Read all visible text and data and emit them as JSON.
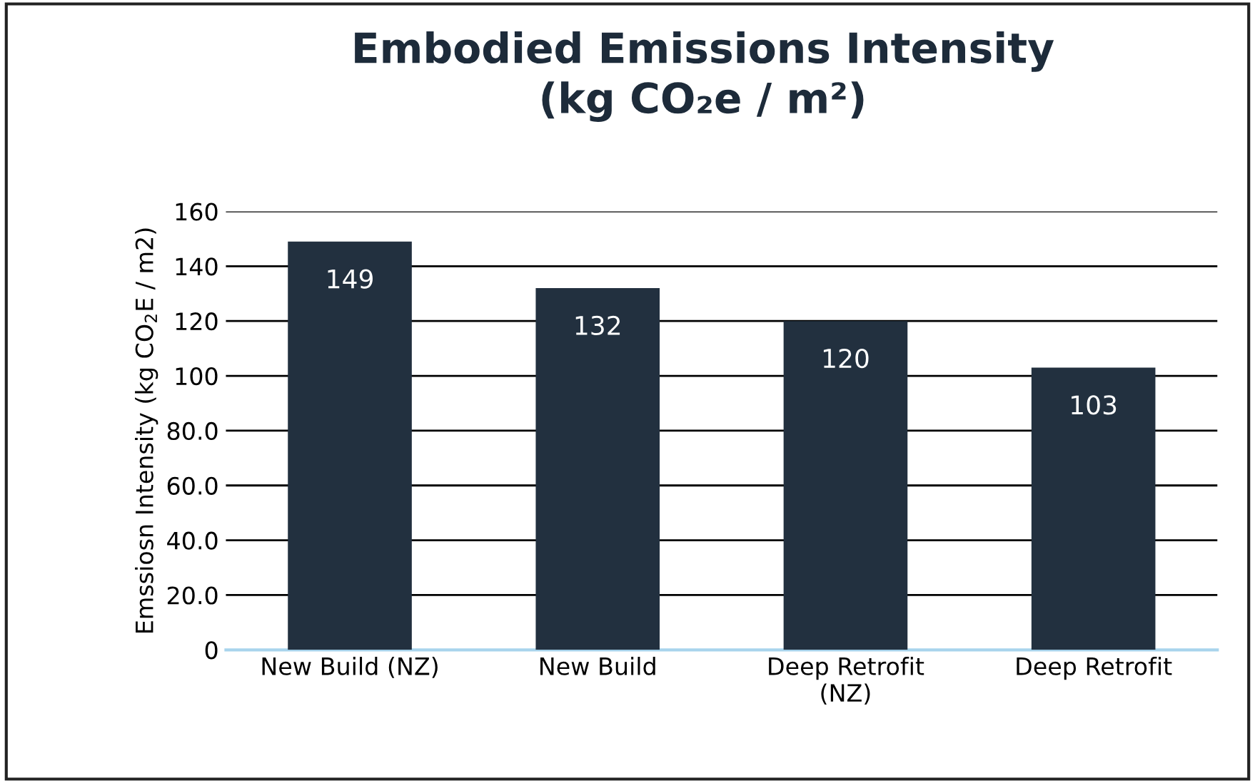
{
  "chart_data": {
    "type": "bar",
    "title": "Embodied Emissions Intensity\n(kg CO₂e / m²)",
    "ylabel": "Emssiosn Intensity (kg CO$_{2}$E / m2)",
    "categories": [
      "New Build (NZ)",
      "New Build",
      "Deep Retrofit\n(NZ)",
      "Deep Retrofit"
    ],
    "values": [
      149,
      132,
      120,
      103
    ],
    "color": "#22303f",
    "ylim": [
      0,
      160
    ],
    "yticks": [
      0,
      {
        "value": 20,
        "label": "20.0"
      },
      {
        "value": 40,
        "label": "40.0"
      },
      {
        "value": 60,
        "label": "60.0"
      },
      {
        "value": 80,
        "label": "80.0"
      },
      100,
      120,
      140,
      160
    ],
    "grid": "y",
    "data_labels": true
  }
}
